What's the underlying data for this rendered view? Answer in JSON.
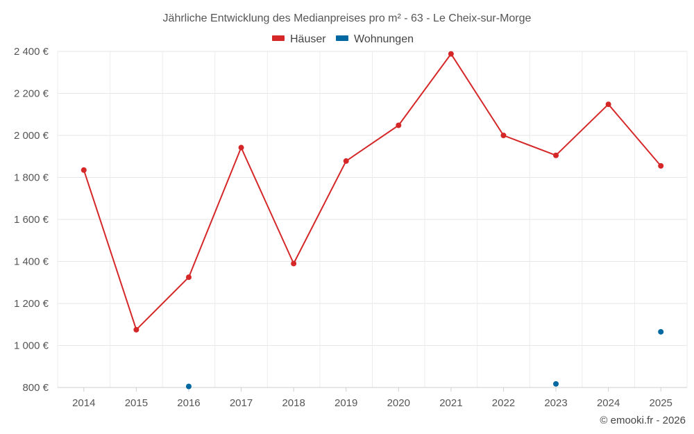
{
  "chart_data": {
    "type": "line",
    "title": "Jährliche Entwicklung des Medianpreises pro m² - 63 - Le Cheix-sur-Morge",
    "categories": [
      "2014",
      "2015",
      "2016",
      "2017",
      "2018",
      "2019",
      "2020",
      "2021",
      "2022",
      "2023",
      "2024",
      "2025"
    ],
    "series": [
      {
        "name": "Häuser",
        "color": "#d62728",
        "values": [
          1835,
          1075,
          1325,
          1942,
          1390,
          1878,
          2048,
          2388,
          2000,
          1905,
          2148,
          1855
        ]
      },
      {
        "name": "Wohnungen",
        "color": "#0068a0",
        "values": [
          null,
          null,
          805,
          null,
          null,
          null,
          null,
          null,
          null,
          817,
          null,
          1065
        ]
      }
    ],
    "ylim": [
      800,
      2400
    ],
    "y_ticks": [
      800,
      1000,
      1200,
      1400,
      1600,
      1800,
      2000,
      2200,
      2400
    ],
    "y_tick_labels": [
      "800 €",
      "1 000 €",
      "1 200 €",
      "1 400 €",
      "1 600 €",
      "1 800 €",
      "2 000 €",
      "2 200 €",
      "2 400 €"
    ],
    "grid": true,
    "legend_position": "top-center"
  },
  "credit": "© emooki.fr - 2026"
}
